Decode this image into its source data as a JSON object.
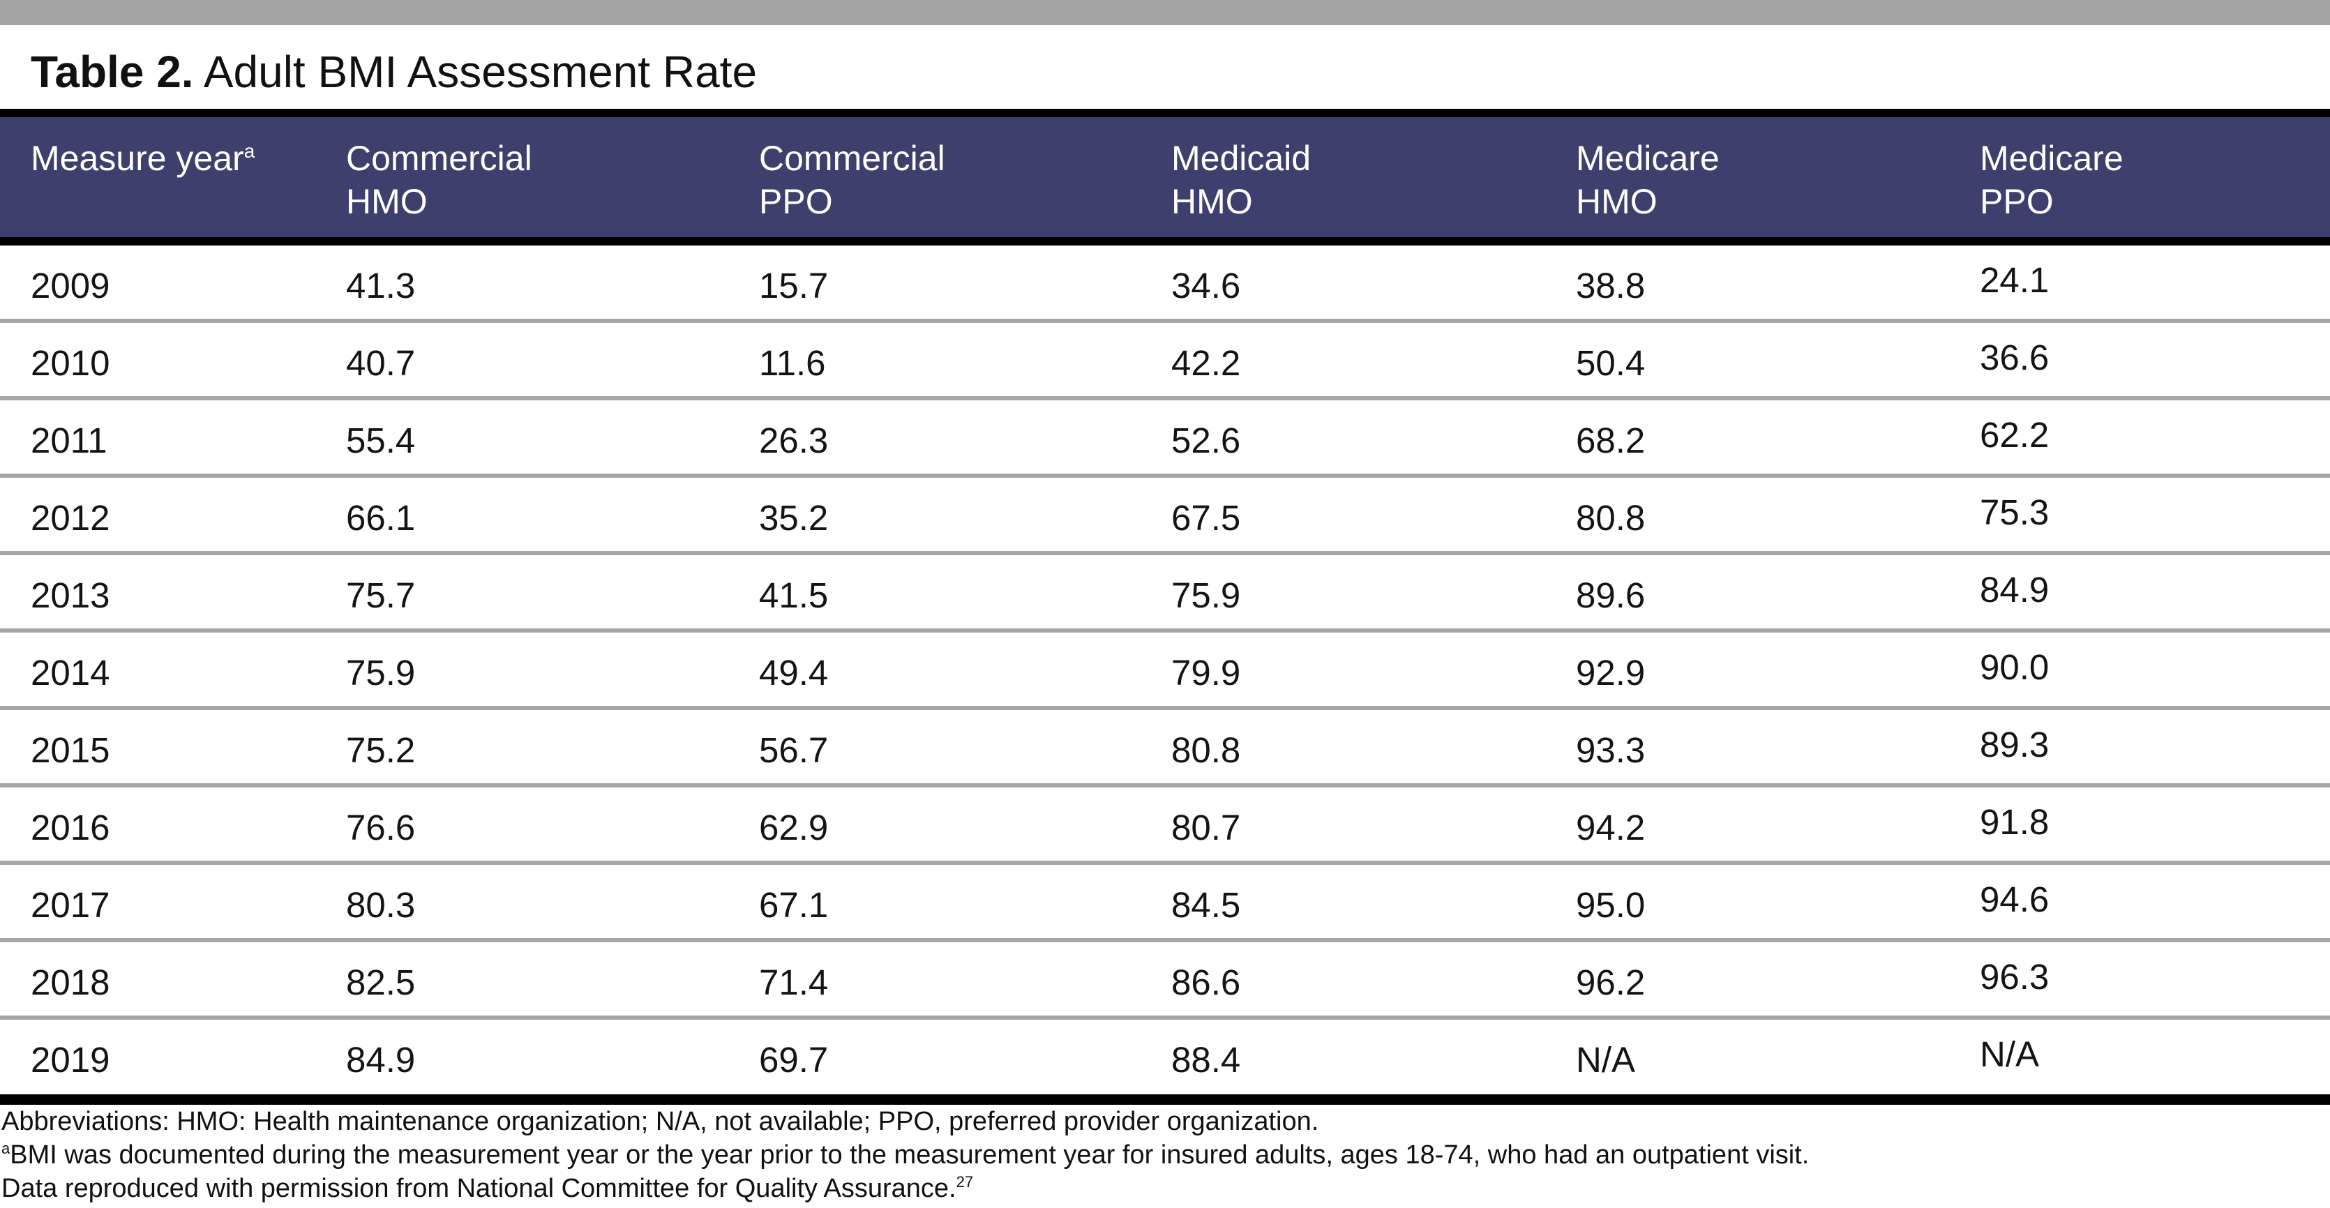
{
  "table": {
    "title_label": "Table 2.",
    "title_text": "Adult BMI Assessment Rate",
    "columns": [
      {
        "line1": "Measure year",
        "line2": "",
        "sup": "a"
      },
      {
        "line1": "Commercial",
        "line2": "HMO",
        "sup": ""
      },
      {
        "line1": "Commercial",
        "line2": "PPO",
        "sup": ""
      },
      {
        "line1": "Medicaid",
        "line2": "HMO",
        "sup": ""
      },
      {
        "line1": "Medicare",
        "line2": "HMO",
        "sup": ""
      },
      {
        "line1": "Medicare",
        "line2": "PPO",
        "sup": ""
      }
    ],
    "rows": [
      [
        "2009",
        "41.3",
        "15.7",
        "34.6",
        "38.8",
        "24.1"
      ],
      [
        "2010",
        "40.7",
        "11.6",
        "42.2",
        "50.4",
        "36.6"
      ],
      [
        "2011",
        "55.4",
        "26.3",
        "52.6",
        "68.2",
        "62.2"
      ],
      [
        "2012",
        "66.1",
        "35.2",
        "67.5",
        "80.8",
        "75.3"
      ],
      [
        "2013",
        "75.7",
        "41.5",
        "75.9",
        "89.6",
        "84.9"
      ],
      [
        "2014",
        "75.9",
        "49.4",
        "79.9",
        "92.9",
        "90.0"
      ],
      [
        "2015",
        "75.2",
        "56.7",
        "80.8",
        "93.3",
        "89.3"
      ],
      [
        "2016",
        "76.6",
        "62.9",
        "80.7",
        "94.2",
        "91.8"
      ],
      [
        "2017",
        "80.3",
        "67.1",
        "84.5",
        "95.0",
        "94.6"
      ],
      [
        "2018",
        "82.5",
        "71.4",
        "86.6",
        "96.2",
        "96.3"
      ],
      [
        "2019",
        "84.9",
        "69.7",
        "88.4",
        "N/A",
        "N/A"
      ]
    ]
  },
  "footnotes": {
    "abbreviations": "Abbreviations: HMO: Health maintenance organization; N/A, not available; PPO, preferred provider organization.",
    "note_a_marker": "a",
    "note_a": "BMI was documented during the measurement year or the year prior to the measurement year for insured adults, ages 18-74, who had an outpatient visit.",
    "source": "Data reproduced with permission from National Committee for Quality Assurance.",
    "source_ref": "27"
  },
  "colors": {
    "header_bg": "#3d3f6d",
    "top_bar": "#a3a3a3",
    "row_divider": "#a6a6a6",
    "rule": "#000000"
  }
}
